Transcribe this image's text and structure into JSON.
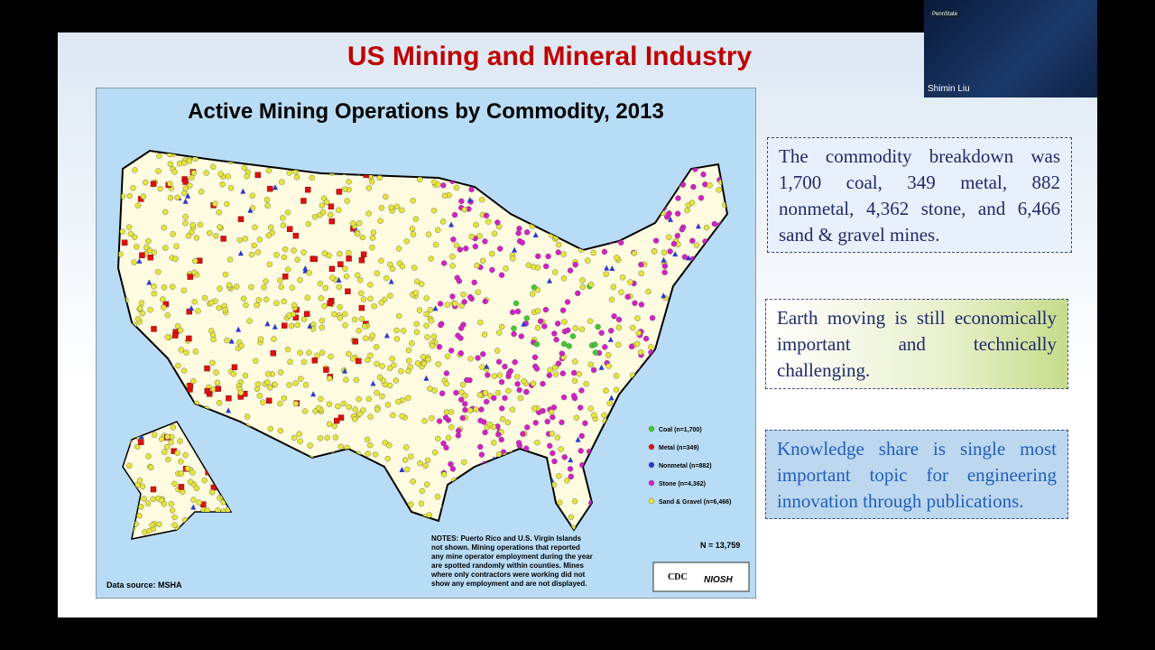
{
  "header": {
    "title": "US Mining and Mineral Industry"
  },
  "map": {
    "title": "Active Mining Operations by Commodity, 2013",
    "legend": [
      "Coal (n=1,700)",
      "Metal (n=349)",
      "Nonmetal (n=882)",
      "Stone (n=4,362)",
      "Sand & Gravel (n=6,466)"
    ],
    "total": "N = 13,759",
    "notes": [
      "NOTES: Puerto Rico and U.S. Virgin Islands",
      "not shown. Mining operations that reported",
      "any mine operator employment during the year",
      "are spotted randomly within counties. Mines",
      "where only contractors were working did not",
      "show any employment and are not displayed."
    ],
    "source": "Data source: MSHA",
    "logos": [
      "CDC",
      "NIOSH"
    ]
  },
  "text_boxes": [
    "The commodity breakdown was 1,700 coal, 349 metal, 882 nonmetal, 4,362 stone, and 6,466 sand & gravel mines.",
    "Earth moving is still economically important and technically challenging.",
    "Knowledge share is single most important topic for engineering innovation through publications."
  ],
  "video": {
    "participant": "Shimin Liu",
    "badge": "PennState"
  }
}
